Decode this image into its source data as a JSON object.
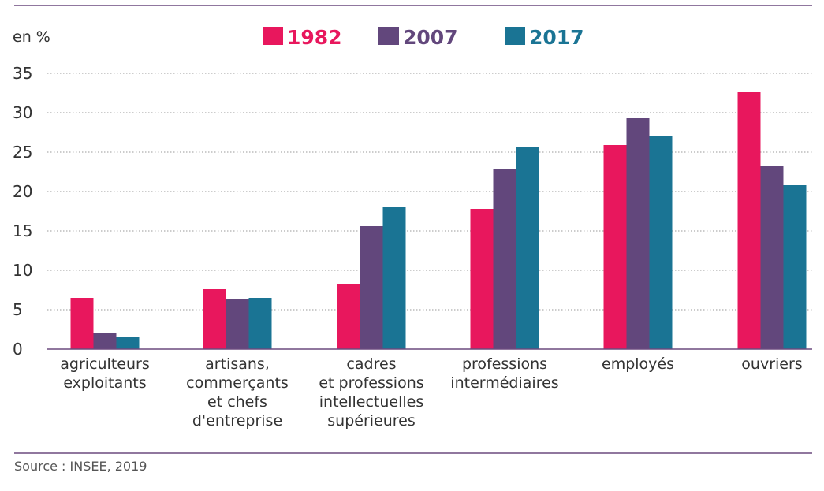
{
  "unit_label": "en %",
  "source": "Source : INSEE, 2019",
  "colors": {
    "1982": "#e8175d",
    "2007": "#62477c",
    "2017": "#1a7494"
  },
  "chart_data": {
    "type": "bar",
    "categories": [
      [
        "agriculteurs",
        "exploitants"
      ],
      [
        "artisans,",
        "commerçants",
        "et chefs",
        "d'entreprise"
      ],
      [
        "cadres",
        "et professions",
        "intellectuelles",
        "supérieures"
      ],
      [
        "professions",
        "intermédiaires"
      ],
      [
        "employés"
      ],
      [
        "ouvriers"
      ]
    ],
    "series": [
      {
        "name": "1982",
        "color": "#e8175d",
        "values": [
          6.5,
          7.6,
          8.3,
          17.8,
          25.9,
          32.6
        ]
      },
      {
        "name": "2007",
        "color": "#62477c",
        "values": [
          2.1,
          6.3,
          15.6,
          22.8,
          29.3,
          23.2
        ]
      },
      {
        "name": "2017",
        "color": "#1a7494",
        "values": [
          1.6,
          6.5,
          18.0,
          25.6,
          27.1,
          20.8
        ]
      }
    ],
    "yticks": [
      0,
      5,
      10,
      15,
      20,
      25,
      30,
      35
    ],
    "ylim": [
      0,
      35
    ],
    "ylabel": "en %",
    "grid": true,
    "legend_position": "top"
  }
}
